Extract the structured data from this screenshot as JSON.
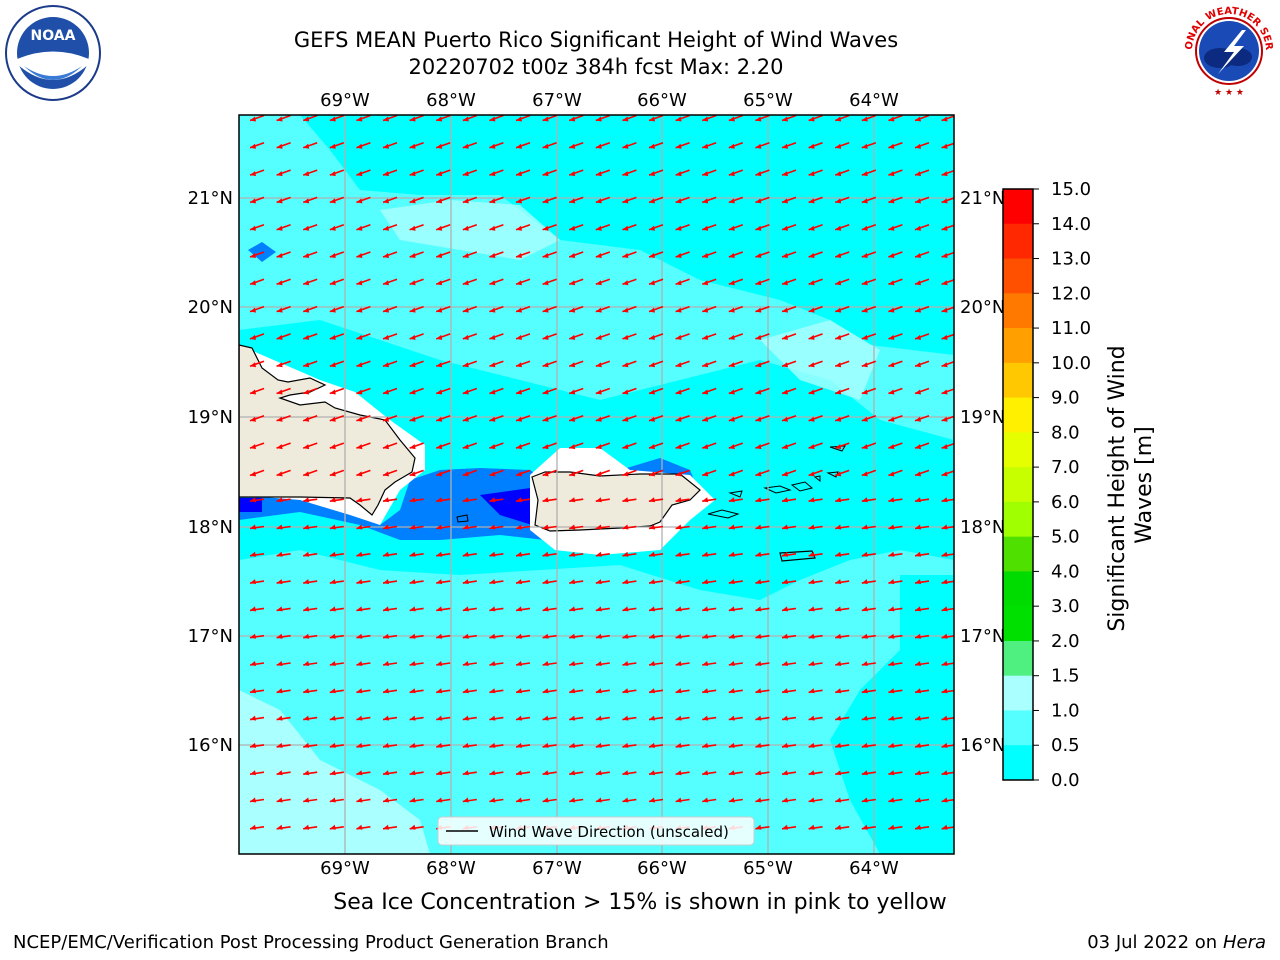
{
  "title": {
    "line1": "GEFS MEAN Puerto Rico Significant Height of Wind Waves",
    "line2": "20220702 t00z 384h fcst   Max: 2.20"
  },
  "logos": {
    "left": {
      "name": "noaa-logo",
      "text": "NOAA"
    },
    "right": {
      "name": "nws-logo",
      "text": "NATIONAL WEATHER SERVICE"
    }
  },
  "map": {
    "lon_labels": [
      "69°W",
      "68°W",
      "67°W",
      "66°W",
      "65°W",
      "64°W"
    ],
    "lat_labels": [
      "21°N",
      "20°N",
      "19°N",
      "18°N",
      "17°N",
      "16°N"
    ],
    "legend_label": "Wind Wave Direction (unscaled)",
    "colors": {
      "ocean_main": "#00ffff",
      "ocean_light": "#55ffff",
      "ocean_pale": "#aaffff",
      "mid_blue": "#0080ff",
      "deep_blue": "#0000ff",
      "land": "#efebdc",
      "arrow": "#ff0000",
      "grid": "#b0b0b0"
    }
  },
  "colorbar": {
    "label": "Significant Height of Wind Waves [m]",
    "ticks": [
      "15.0",
      "14.0",
      "13.0",
      "12.0",
      "11.0",
      "10.0",
      "9.0",
      "8.0",
      "7.0",
      "6.0",
      "5.0",
      "4.0",
      "3.0",
      "2.0",
      "1.5",
      "1.0",
      "0.5",
      "0.0"
    ],
    "colors": [
      "#ff0000",
      "#ff2800",
      "#ff5000",
      "#ff7800",
      "#ffa000",
      "#ffc800",
      "#fff000",
      "#e6ff00",
      "#c8ff00",
      "#a0ff00",
      "#50e000",
      "#00dc00",
      "#00e000",
      "#50f080",
      "#aaffff",
      "#55ffff",
      "#00ffff",
      "#0080ff",
      "#0000ff"
    ]
  },
  "notes": {
    "ice": "Sea Ice Concentration > 15% is shown in pink to yellow",
    "footer_left": "NCEP/EMC/Verification Post Processing Product Generation Branch",
    "footer_right_date": "03 Jul 2022 on",
    "footer_right_host": "Hera"
  }
}
